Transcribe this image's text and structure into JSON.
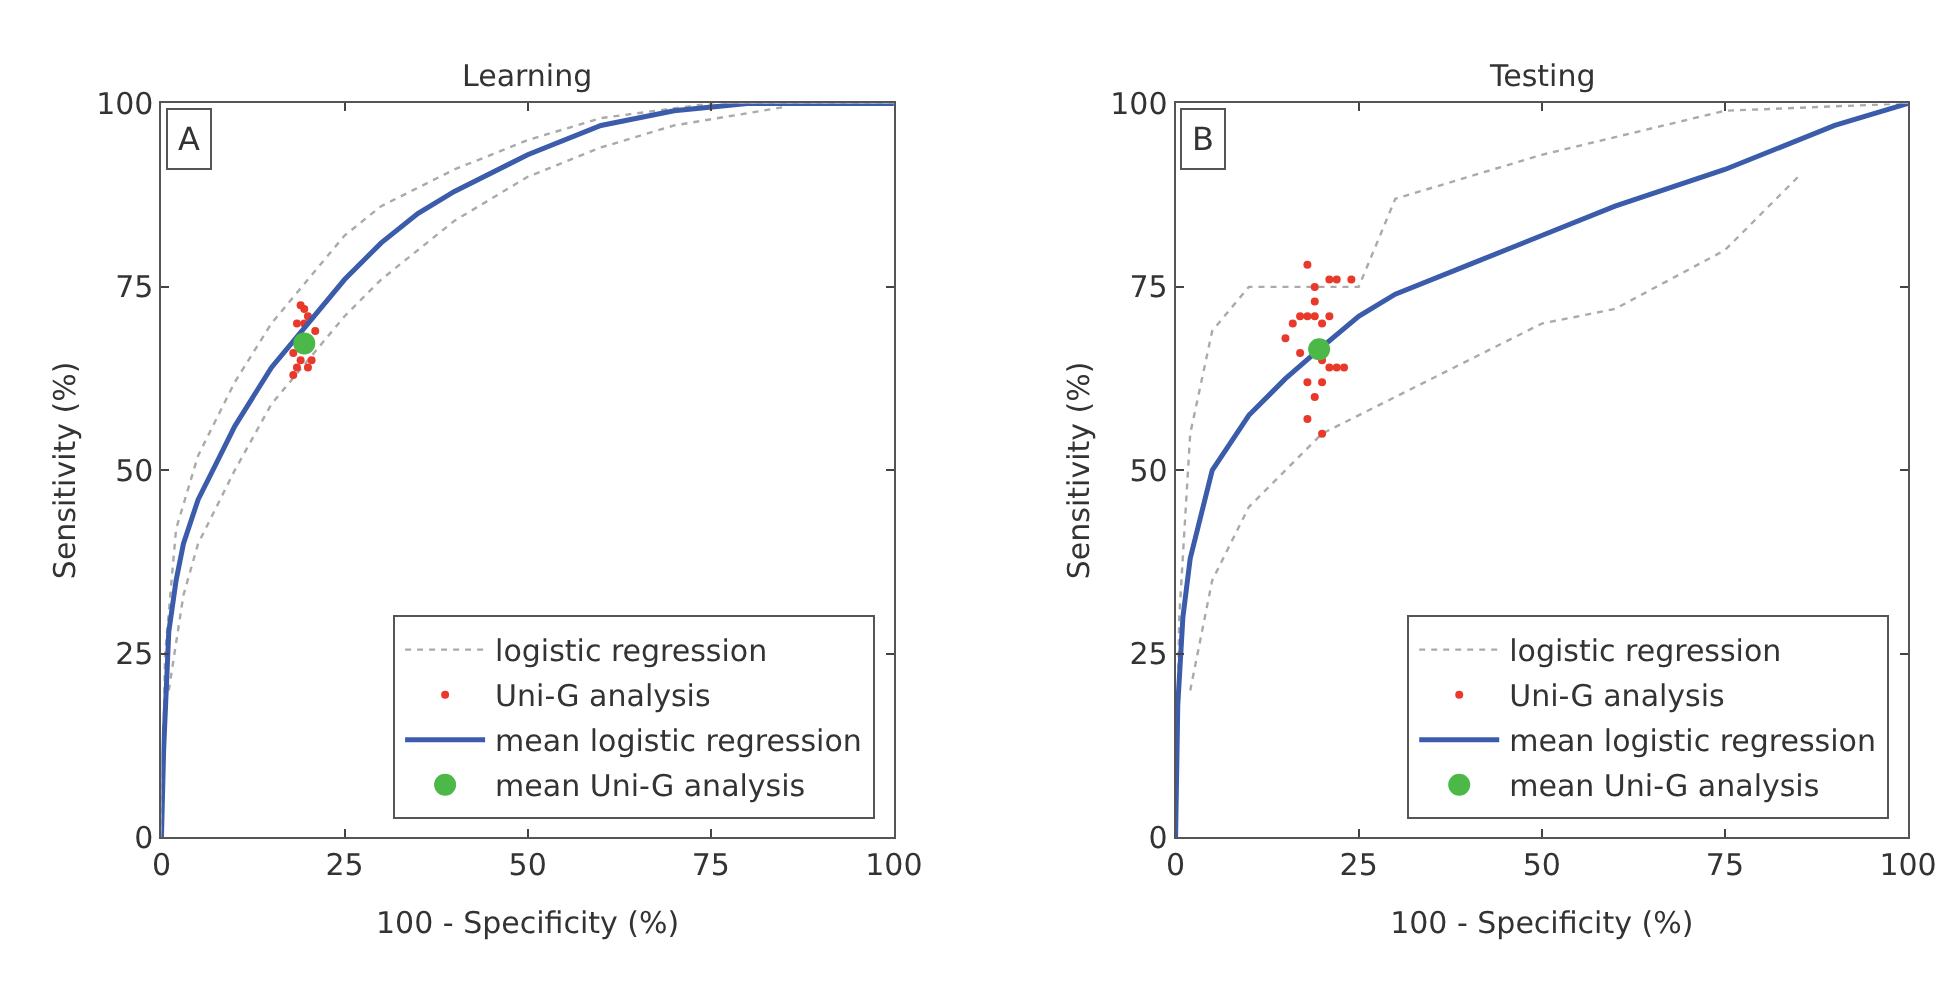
{
  "chart_data": [
    {
      "type": "line",
      "title": "Learning",
      "xlabel": "100 - Specificity (%)",
      "ylabel": "Sensitivity (%)",
      "annotations": [
        "A"
      ],
      "xlim": [
        0,
        100
      ],
      "ylim": [
        0,
        100
      ],
      "xticks": [
        0,
        25,
        50,
        75,
        100
      ],
      "yticks": [
        0,
        25,
        50,
        75,
        100
      ],
      "grid": false,
      "legend": "bottom right",
      "series": [
        {
          "name": "logistic regression",
          "line_style": "dotted",
          "marker": "none",
          "color": "#aaaaaa",
          "x": [
            0,
            0.5,
            2,
            5,
            10,
            15,
            20,
            25,
            30,
            40,
            50,
            60,
            75,
            100
          ],
          "values": [
            0,
            25,
            42,
            52,
            62,
            70,
            76,
            82,
            86,
            91,
            95,
            98,
            100,
            100
          ]
        },
        {
          "line_style": "dotted",
          "marker": "none",
          "color": "#aaaaaa",
          "x": [
            1,
            3,
            5,
            10,
            15,
            20,
            25,
            30,
            40,
            50,
            60,
            70,
            85
          ],
          "values": [
            20,
            33,
            40,
            50,
            59,
            65,
            71,
            76,
            84,
            90,
            94,
            97,
            99.5
          ]
        },
        {
          "name": "Uni-G analysis",
          "type": "scatter",
          "marker": "circle",
          "color": "#e8392b",
          "x": [
            18,
            18.5,
            19,
            18.5,
            20,
            19.5,
            18,
            20.5,
            19.5,
            20,
            21,
            19
          ],
          "values": [
            63,
            64,
            65,
            70,
            71,
            72,
            66,
            65,
            70,
            64,
            69,
            72.5
          ]
        },
        {
          "name": "mean logistic regression",
          "line_style": "solid",
          "marker": "none",
          "color": "#3b5bab",
          "x": [
            0,
            0.3,
            1,
            2,
            3,
            5,
            7.5,
            10,
            15,
            20,
            25,
            30,
            35,
            40,
            50,
            60,
            70,
            80,
            100
          ],
          "values": [
            0,
            12,
            28,
            35,
            40,
            46,
            51,
            56,
            64,
            70,
            76,
            81,
            85,
            88,
            93,
            97,
            99,
            100,
            100
          ]
        },
        {
          "name": "mean Uni-G analysis",
          "type": "scatter",
          "marker": "circle",
          "color": "#4cb847",
          "x": [
            19.5
          ],
          "values": [
            67.3
          ]
        }
      ]
    },
    {
      "type": "line",
      "title": "Testing",
      "xlabel": "100 - Specificity (%)",
      "ylabel": "Sensitivity (%)",
      "annotations": [
        "B"
      ],
      "xlim": [
        0,
        100
      ],
      "ylim": [
        0,
        100
      ],
      "xticks": [
        0,
        25,
        50,
        75,
        100
      ],
      "yticks": [
        0,
        25,
        50,
        75,
        100
      ],
      "grid": false,
      "legend": "bottom right",
      "series": [
        {
          "name": "logistic regression",
          "line_style": "dotted",
          "marker": "none",
          "color": "#aaaaaa",
          "x": [
            0,
            0.5,
            2,
            5,
            10,
            25,
            30,
            50,
            75,
            100
          ],
          "values": [
            0,
            30,
            55,
            69,
            75,
            75,
            87,
            93,
            99,
            100
          ]
        },
        {
          "line_style": "dotted",
          "marker": "none",
          "color": "#aaaaaa",
          "x": [
            2,
            5,
            10,
            20,
            30,
            50,
            60,
            75,
            85
          ],
          "values": [
            20,
            35,
            45,
            55,
            60,
            70,
            72,
            80,
            90
          ]
        },
        {
          "name": "Uni-G analysis",
          "type": "scatter",
          "marker": "circle",
          "color": "#e8392b",
          "x": [
            15,
            16,
            17,
            18,
            19,
            20,
            21,
            22,
            23,
            18,
            20,
            21,
            19,
            18,
            20,
            17,
            19,
            21,
            22,
            18,
            19,
            20,
            24
          ],
          "values": [
            68,
            70,
            71,
            71,
            71,
            70,
            71,
            64,
            64,
            62,
            62,
            64,
            60,
            57,
            55,
            66,
            73,
            76,
            76,
            78,
            75,
            65,
            76
          ]
        },
        {
          "name": "mean logistic regression",
          "line_style": "solid",
          "marker": "none",
          "color": "#3b5bab",
          "x": [
            0,
            0.3,
            1,
            2,
            5,
            10,
            15,
            19.6,
            25,
            30,
            40,
            50,
            60,
            75,
            90,
            100
          ],
          "values": [
            0,
            18,
            30,
            38,
            50,
            57.5,
            62.5,
            66.5,
            71,
            74,
            78,
            82,
            86,
            91,
            97,
            100
          ]
        },
        {
          "name": "mean Uni-G analysis",
          "type": "scatter",
          "marker": "circle",
          "color": "#4cb847",
          "x": [
            19.6
          ],
          "values": [
            66.5
          ]
        }
      ]
    }
  ]
}
